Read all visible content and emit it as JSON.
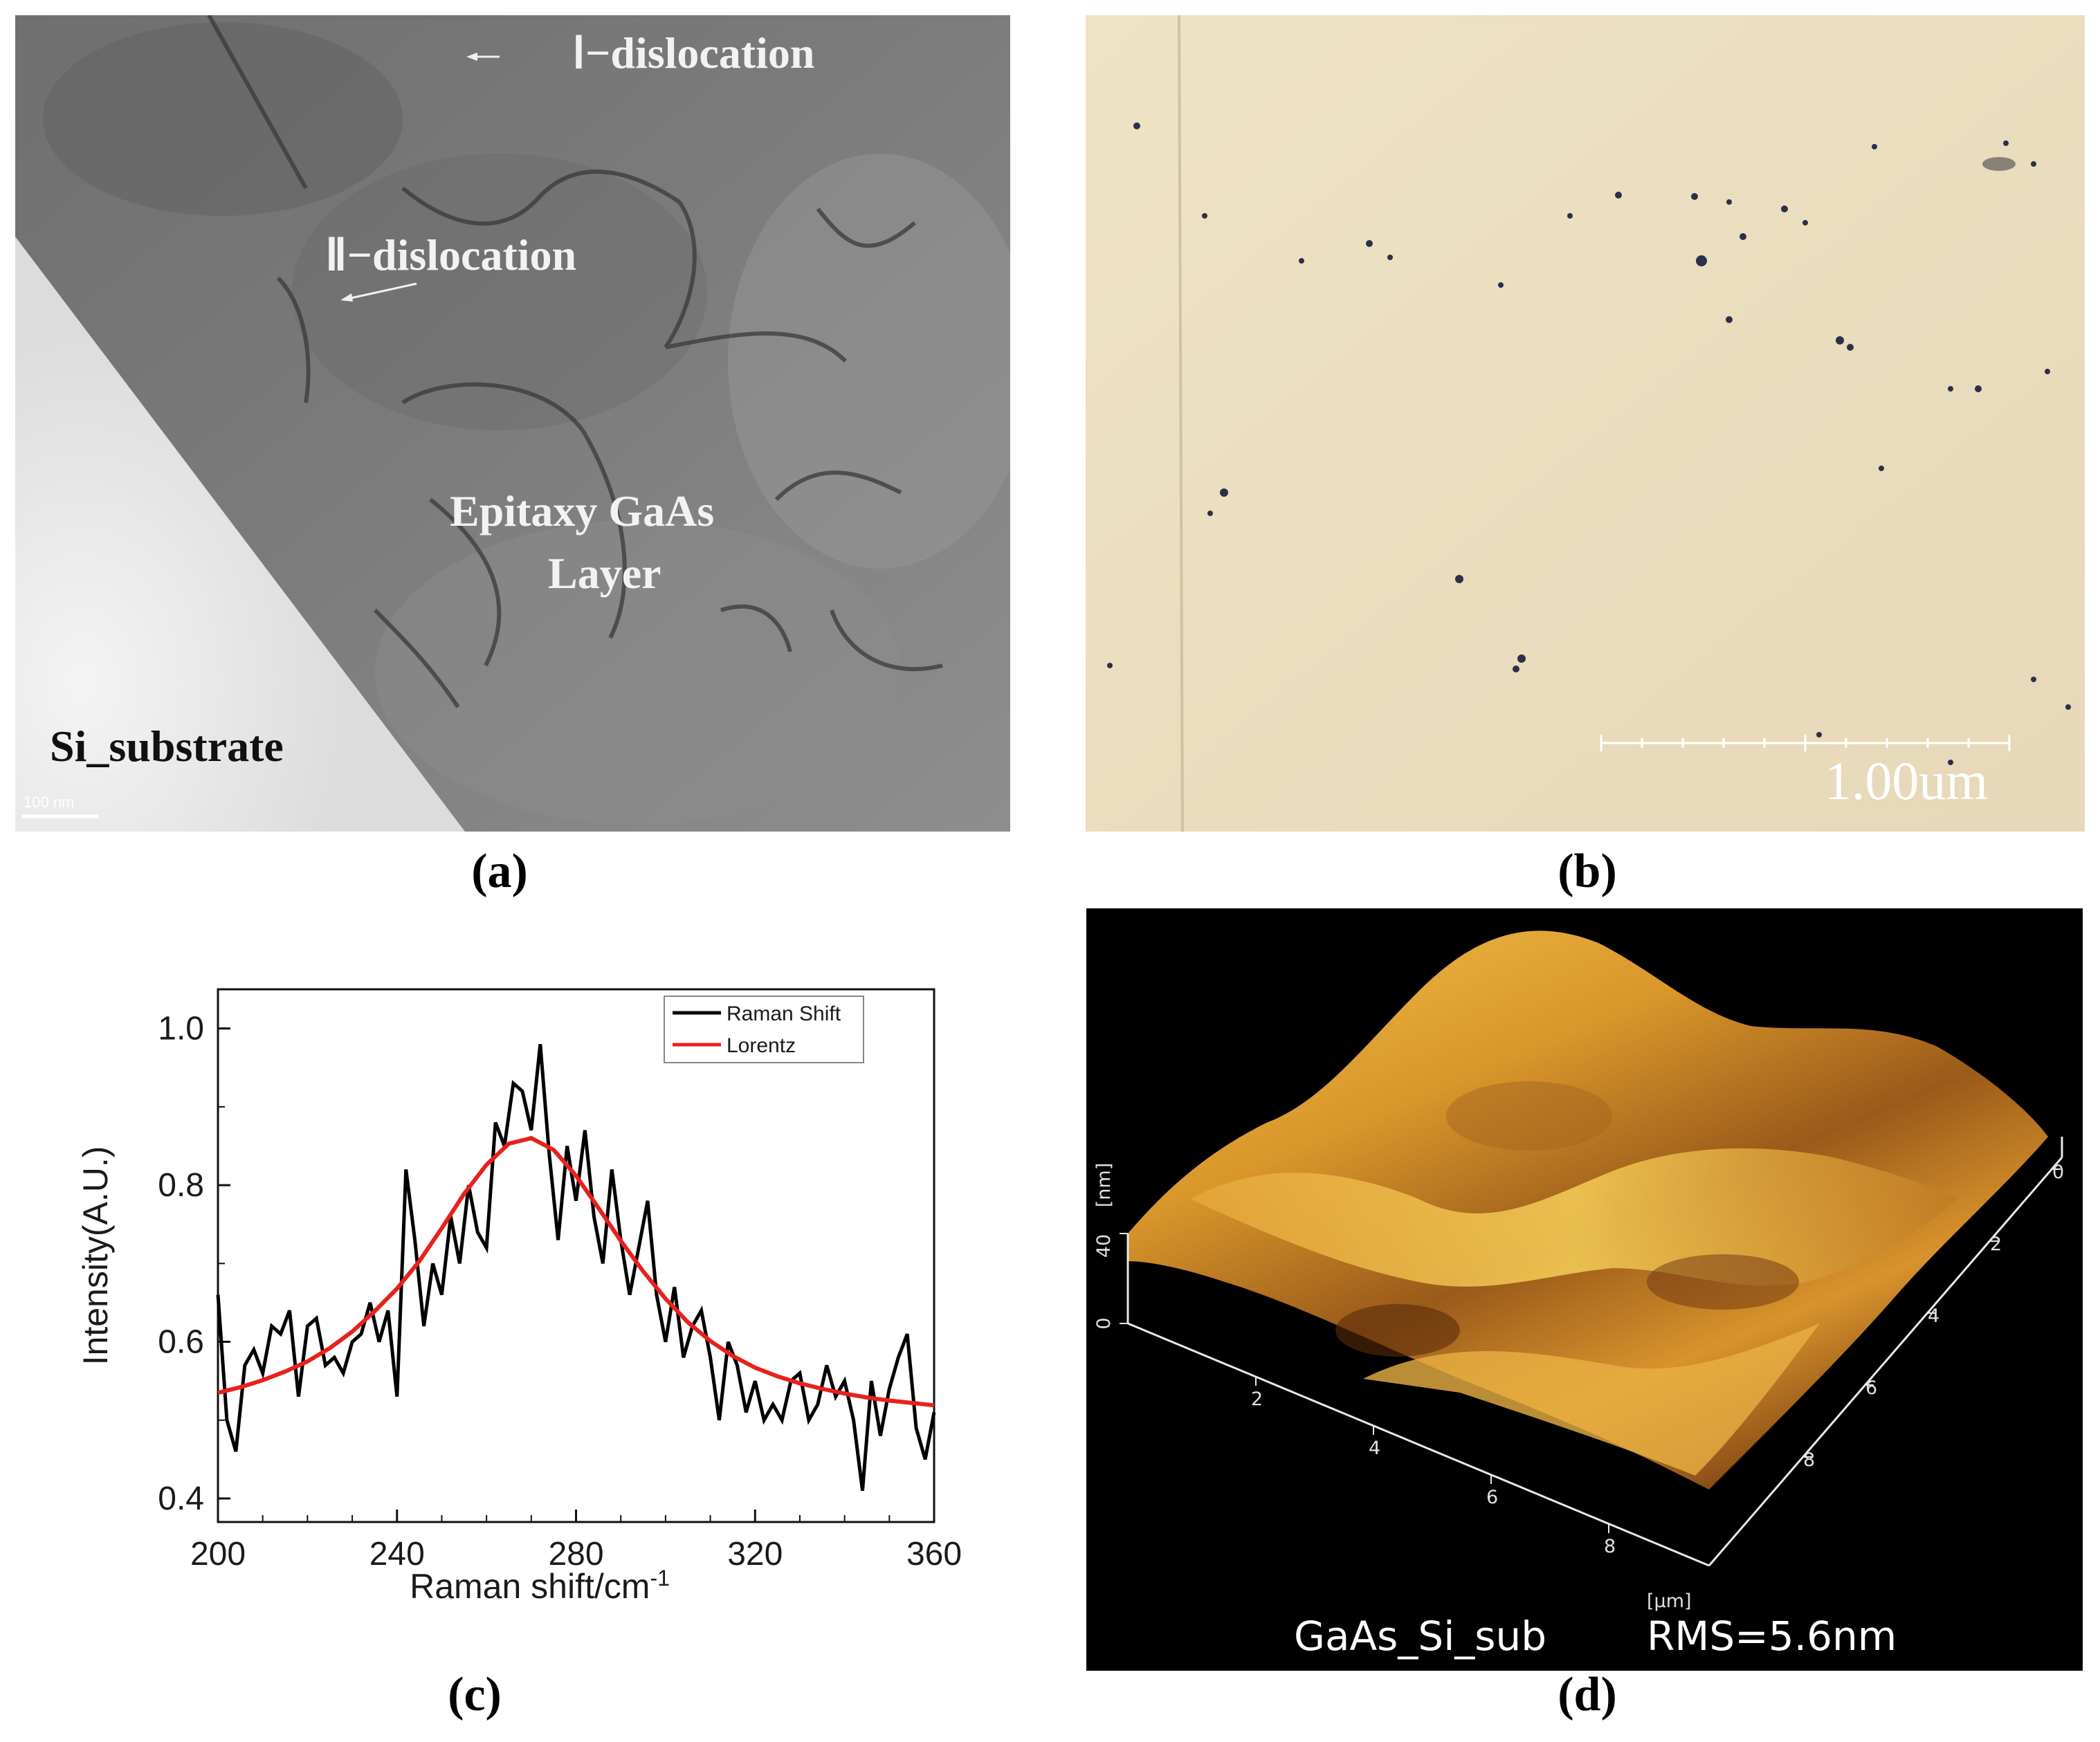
{
  "panel_a": {
    "caption": "(a)",
    "label_dislocation_1": "Ⅰ−dislocation",
    "label_dislocation_2": "Ⅱ−dislocation",
    "label_layer_line1": "Epitaxy GaAs",
    "label_layer_line2": "Layer",
    "label_substrate": "Si_substrate",
    "scale_bar": "100 nm"
  },
  "panel_b": {
    "caption": "(b)",
    "scale_bar": "1.00um"
  },
  "panel_c": {
    "caption": "(c)"
  },
  "panel_d": {
    "caption": "(d)",
    "z_unit": "[nm]",
    "z_tick_max": "40",
    "z_tick_min": "0",
    "xy_unit": "[µm]",
    "x_ticks": [
      "2",
      "4",
      "6",
      "8"
    ],
    "y_ticks": [
      "0",
      "2",
      "4",
      "6",
      "8"
    ],
    "sample_label": "GaAs_Si_sub",
    "rms_label": "RMS=5.6nm"
  },
  "chart_data": {
    "type": "line",
    "title": "",
    "xlabel": "Raman shift/cm",
    "xlabel_sup": "-1",
    "ylabel": "Intensity(A.U.)",
    "xlim": [
      200,
      360
    ],
    "ylim": [
      0.37,
      1.05
    ],
    "xticks": [
      200,
      240,
      280,
      320,
      360
    ],
    "yticks": [
      0.4,
      0.6,
      0.8,
      1.0
    ],
    "ytick_labels": [
      "0.4",
      "0.6",
      "0.8",
      "1.0"
    ],
    "legend": [
      "Raman Shift",
      "Lorentz"
    ],
    "legend_position": "top-right",
    "series": [
      {
        "name": "Raman Shift",
        "color": "#000000",
        "x": [
          200,
          202,
          204,
          206,
          208,
          210,
          212,
          214,
          216,
          218,
          220,
          222,
          224,
          226,
          228,
          230,
          232,
          234,
          236,
          238,
          240,
          242,
          244,
          246,
          248,
          250,
          252,
          254,
          256,
          258,
          260,
          262,
          264,
          266,
          268,
          270,
          272,
          274,
          276,
          278,
          280,
          282,
          284,
          286,
          288,
          290,
          292,
          294,
          296,
          298,
          300,
          302,
          304,
          306,
          308,
          310,
          312,
          314,
          316,
          318,
          320,
          322,
          324,
          326,
          328,
          330,
          332,
          334,
          336,
          338,
          340,
          342,
          344,
          346,
          348,
          350,
          352,
          354,
          356,
          358,
          360
        ],
        "values": [
          0.66,
          0.5,
          0.46,
          0.57,
          0.59,
          0.56,
          0.62,
          0.61,
          0.64,
          0.53,
          0.62,
          0.63,
          0.57,
          0.58,
          0.56,
          0.6,
          0.61,
          0.65,
          0.6,
          0.64,
          0.53,
          0.82,
          0.73,
          0.62,
          0.7,
          0.66,
          0.76,
          0.7,
          0.8,
          0.74,
          0.72,
          0.88,
          0.85,
          0.93,
          0.92,
          0.87,
          0.98,
          0.84,
          0.73,
          0.85,
          0.78,
          0.87,
          0.76,
          0.7,
          0.82,
          0.73,
          0.66,
          0.72,
          0.78,
          0.66,
          0.6,
          0.67,
          0.58,
          0.62,
          0.64,
          0.58,
          0.5,
          0.6,
          0.57,
          0.51,
          0.55,
          0.5,
          0.52,
          0.5,
          0.55,
          0.56,
          0.5,
          0.52,
          0.57,
          0.53,
          0.55,
          0.5,
          0.41,
          0.55,
          0.48,
          0.54,
          0.58,
          0.61,
          0.49,
          0.45,
          0.51
        ]
      },
      {
        "name": "Lorentz",
        "color": "#e8211d",
        "x": [
          200,
          205,
          210,
          215,
          220,
          225,
          230,
          235,
          240,
          245,
          250,
          255,
          260,
          265,
          270,
          275,
          280,
          285,
          290,
          295,
          300,
          305,
          310,
          315,
          320,
          325,
          330,
          335,
          340,
          345,
          350,
          355,
          360
        ],
        "values": [
          0.535,
          0.542,
          0.551,
          0.562,
          0.575,
          0.592,
          0.613,
          0.639,
          0.668,
          0.703,
          0.745,
          0.789,
          0.826,
          0.853,
          0.86,
          0.845,
          0.812,
          0.771,
          0.729,
          0.69,
          0.655,
          0.625,
          0.601,
          0.582,
          0.567,
          0.556,
          0.547,
          0.54,
          0.534,
          0.529,
          0.525,
          0.522,
          0.519
        ]
      }
    ]
  }
}
